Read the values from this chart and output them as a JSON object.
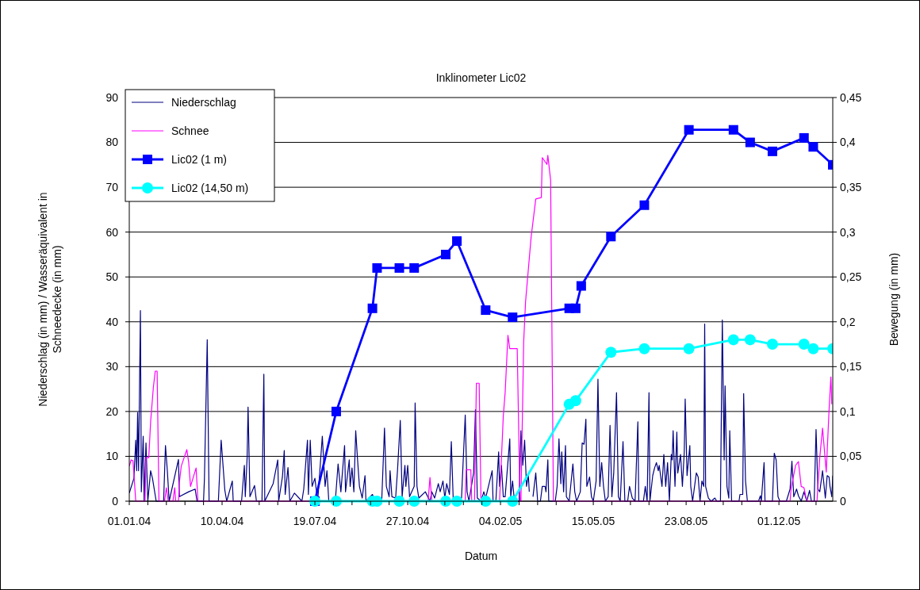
{
  "chart_data": {
    "type": "line",
    "title": "Inklinometer Lic02",
    "xlabel": "Datum",
    "ylabel": "Niederschlag (in mm) / Wasseräquivalent in Schneedecke (in mm)",
    "y2label": "Bewegung (in mm)",
    "xlim": [
      "2004-01-01",
      "2006-01-28"
    ],
    "xticks": [
      {
        "value": "2004-01-01",
        "label": "01.01.04"
      },
      {
        "value": "2004-01-21",
        "label": null
      },
      {
        "value": "2004-02-10",
        "label": null
      },
      {
        "value": "2004-03-01",
        "label": null
      },
      {
        "value": "2004-03-21",
        "label": null
      },
      {
        "value": "2004-04-10",
        "label": "10.04.04"
      },
      {
        "value": "2004-04-30",
        "label": null
      },
      {
        "value": "2004-05-20",
        "label": null
      },
      {
        "value": "2004-06-09",
        "label": null
      },
      {
        "value": "2004-06-29",
        "label": null
      },
      {
        "value": "2004-07-19",
        "label": "19.07.04"
      },
      {
        "value": "2004-08-08",
        "label": null
      },
      {
        "value": "2004-08-28",
        "label": null
      },
      {
        "value": "2004-09-17",
        "label": null
      },
      {
        "value": "2004-10-07",
        "label": null
      },
      {
        "value": "2004-10-27",
        "label": "27.10.04"
      },
      {
        "value": "2004-11-16",
        "label": null
      },
      {
        "value": "2004-12-06",
        "label": null
      },
      {
        "value": "2004-12-26",
        "label": null
      },
      {
        "value": "2005-01-15",
        "label": null
      },
      {
        "value": "2005-02-04",
        "label": "04.02.05"
      },
      {
        "value": "2005-02-24",
        "label": null
      },
      {
        "value": "2005-03-16",
        "label": null
      },
      {
        "value": "2005-04-05",
        "label": null
      },
      {
        "value": "2005-04-25",
        "label": null
      },
      {
        "value": "2005-05-15",
        "label": "15.05.05"
      },
      {
        "value": "2005-06-04",
        "label": null
      },
      {
        "value": "2005-06-24",
        "label": null
      },
      {
        "value": "2005-07-14",
        "label": null
      },
      {
        "value": "2005-08-03",
        "label": null
      },
      {
        "value": "2005-08-23",
        "label": "23.08.05"
      },
      {
        "value": "2005-09-12",
        "label": null
      },
      {
        "value": "2005-10-02",
        "label": null
      },
      {
        "value": "2005-10-22",
        "label": null
      },
      {
        "value": "2005-11-11",
        "label": null
      },
      {
        "value": "2005-12-01",
        "label": "01.12.05"
      },
      {
        "value": "2005-12-21",
        "label": null
      },
      {
        "value": "2006-01-10",
        "label": null
      }
    ],
    "ylim": [
      0,
      90
    ],
    "yticks": [
      0,
      10,
      20,
      30,
      40,
      50,
      60,
      70,
      80,
      90
    ],
    "y2lim": [
      0,
      0.45
    ],
    "y2ticks": [
      0,
      {
        "value": 0.05,
        "label": "0,05"
      },
      {
        "value": 0.1,
        "label": "0,1"
      },
      {
        "value": 0.15,
        "label": "0,15"
      },
      {
        "value": 0.2,
        "label": "0,2"
      },
      {
        "value": 0.25,
        "label": "0,25"
      },
      {
        "value": 0.3,
        "label": "0,3"
      },
      {
        "value": 0.35,
        "label": "0,35"
      },
      {
        "value": 0.4,
        "label": "0,4"
      },
      {
        "value": 0.45,
        "label": "0,45"
      }
    ],
    "grid": "y",
    "legend": "top left",
    "line_style": "solid",
    "series": [
      {
        "name": "Niederschlag",
        "color": "#000080",
        "marker": "none",
        "x": [
          "2004-01-01",
          "2004-01-06",
          "2004-01-08",
          "2004-01-09",
          "2004-01-10",
          "2004-01-11",
          "2004-01-13",
          "2004-01-14",
          "2004-01-16",
          "2004-01-17",
          "2004-01-19",
          "2004-01-21",
          "2004-01-24",
          "2004-01-26",
          "2004-01-30",
          "2004-02-07",
          "2004-02-09",
          "2004-02-11",
          "2004-02-13",
          "2004-02-23",
          "2004-02-24",
          "2004-03-05",
          "2004-03-12",
          "2004-03-14",
          "2004-03-21",
          "2004-03-22",
          "2004-03-25",
          "2004-03-27",
          "2004-04-06",
          "2004-04-09",
          "2004-04-13",
          "2004-04-15",
          "2004-04-21",
          "2004-04-22",
          "2004-05-01",
          "2004-05-04",
          "2004-05-05",
          "2004-05-07",
          "2004-05-08",
          "2004-05-10",
          "2004-05-15",
          "2004-05-17",
          "2004-05-23",
          "2004-05-25",
          "2004-05-26",
          "2004-06-04",
          "2004-06-09",
          "2004-06-10",
          "2004-06-14",
          "2004-06-16",
          "2004-06-17",
          "2004-06-20",
          "2004-06-22",
          "2004-06-27",
          "2004-07-05",
          "2004-07-07",
          "2004-07-11",
          "2004-07-12",
          "2004-07-14",
          "2004-07-16",
          "2004-07-19",
          "2004-07-22",
          "2004-07-27",
          "2004-07-30",
          "2004-08-01",
          "2004-08-03",
          "2004-08-10",
          "2004-08-13",
          "2004-08-16",
          "2004-08-20",
          "2004-08-21",
          "2004-08-25",
          "2004-08-26",
          "2004-08-28",
          "2004-08-30",
          "2004-09-01",
          "2004-09-03",
          "2004-09-05",
          "2004-09-08",
          "2004-09-11",
          "2004-09-12",
          "2004-09-19",
          "2004-09-22",
          "2004-09-29",
          "2004-10-02",
          "2004-10-04",
          "2004-10-07",
          "2004-10-08",
          "2004-10-10",
          "2004-10-14",
          "2004-10-16",
          "2004-10-19",
          "2004-10-21",
          "2004-10-24",
          "2004-10-25",
          "2004-10-27",
          "2004-10-29",
          "2004-11-03",
          "2004-11-04",
          "2004-11-06",
          "2004-11-08",
          "2004-11-15",
          "2004-11-20",
          "2004-11-22",
          "2004-11-25",
          "2004-11-29",
          "2004-12-01",
          "2004-12-04",
          "2004-12-06",
          "2004-12-08",
          "2004-12-11",
          "2004-12-13",
          "2004-12-15",
          "2004-12-20",
          "2004-12-24",
          "2004-12-28",
          "2004-12-30",
          "2005-01-01",
          "2005-01-06",
          "2005-01-08",
          "2005-01-10",
          "2005-01-14",
          "2005-01-17",
          "2005-01-19",
          "2005-01-26",
          "2005-01-27",
          "2005-01-30",
          "2005-02-02",
          "2005-02-03",
          "2005-02-05",
          "2005-02-07",
          "2005-02-09",
          "2005-02-14",
          "2005-02-15",
          "2005-02-17",
          "2005-02-19",
          "2005-02-24",
          "2005-02-26",
          "2005-02-28",
          "2005-03-02",
          "2005-03-04",
          "2005-03-06",
          "2005-03-07",
          "2005-03-09",
          "2005-03-11",
          "2005-03-14",
          "2005-03-16",
          "2005-03-19",
          "2005-03-21",
          "2005-03-24",
          "2005-03-25",
          "2005-03-27",
          "2005-03-28",
          "2005-04-04",
          "2005-04-06",
          "2005-04-08",
          "2005-04-10",
          "2005-04-11",
          "2005-04-13",
          "2005-04-15",
          "2005-04-16",
          "2005-04-19",
          "2005-04-23",
          "2005-04-25",
          "2005-04-27",
          "2005-05-01",
          "2005-05-03",
          "2005-05-05",
          "2005-05-07",
          "2005-05-08",
          "2005-05-11",
          "2005-05-13",
          "2005-05-15",
          "2005-05-18",
          "2005-05-20",
          "2005-05-22",
          "2005-05-24",
          "2005-05-26",
          "2005-05-28",
          "2005-05-31",
          "2005-06-02",
          "2005-06-04",
          "2005-06-06",
          "2005-06-09",
          "2005-06-11",
          "2005-06-13",
          "2005-06-16",
          "2005-06-18",
          "2005-06-21",
          "2005-06-23",
          "2005-06-26",
          "2005-06-29",
          "2005-07-02",
          "2005-07-03",
          "2005-07-08",
          "2005-07-10",
          "2005-07-12",
          "2005-07-14",
          "2005-07-15",
          "2005-07-18",
          "2005-07-20",
          "2005-07-22",
          "2005-07-24",
          "2005-07-25",
          "2005-07-28",
          "2005-07-30",
          "2005-08-01",
          "2005-08-03",
          "2005-08-05",
          "2005-08-07",
          "2005-08-08",
          "2005-08-09",
          "2005-08-11",
          "2005-08-13",
          "2005-08-14",
          "2005-08-17",
          "2005-08-19",
          "2005-08-21",
          "2005-08-22",
          "2005-08-24",
          "2005-08-27",
          "2005-08-28",
          "2005-08-30",
          "2005-09-03",
          "2005-09-05",
          "2005-09-07",
          "2005-09-09",
          "2005-09-11",
          "2005-09-12",
          "2005-09-13",
          "2005-09-16",
          "2005-09-19",
          "2005-09-23",
          "2005-09-25",
          "2005-09-29",
          "2005-10-01",
          "2005-10-03",
          "2005-10-04",
          "2005-10-06",
          "2005-10-08",
          "2005-10-09",
          "2005-10-11",
          "2005-10-19",
          "2005-10-20",
          "2005-10-23",
          "2005-10-24",
          "2005-10-26",
          "2005-10-28",
          "2005-11-09",
          "2005-11-11",
          "2005-11-12",
          "2005-11-15",
          "2005-11-16",
          "2005-11-24",
          "2005-11-26",
          "2005-11-28",
          "2005-11-30",
          "2005-12-02",
          "2005-12-09",
          "2005-12-13",
          "2005-12-15",
          "2005-12-17",
          "2005-12-20",
          "2005-12-22",
          "2005-12-25",
          "2005-12-28",
          "2005-12-31",
          "2006-01-03",
          "2006-01-05",
          "2006-01-08",
          "2006-01-10",
          "2006-01-12",
          "2006-01-14",
          "2006-01-17",
          "2006-01-20",
          "2006-01-22",
          "2006-01-24",
          "2006-01-25",
          "2006-01-27",
          "2006-01-28"
        ],
        "values": [
          1.8,
          5.1,
          13.6,
          6.8,
          19.8,
          6.8,
          42.5,
          2.1,
          14.5,
          0,
          13,
          0,
          6.8,
          5.1,
          0,
          0,
          12.4,
          6.8,
          0,
          9.3,
          1,
          2.1,
          2.7,
          0,
          0,
          5.1,
          36,
          0,
          0,
          13.6,
          2.4,
          0,
          4.5,
          0,
          0,
          8,
          1,
          9.8,
          21,
          1,
          3.5,
          0,
          0,
          28.3,
          0,
          3.9,
          9.2,
          0,
          5.4,
          11.3,
          1.5,
          7.5,
          0,
          1.8,
          0,
          2.7,
          13.6,
          1.5,
          13.6,
          3.3,
          5.1,
          0,
          14.5,
          3.3,
          6.8,
          0,
          0,
          8.3,
          2.1,
          12.4,
          2.1,
          9.2,
          3.3,
          7.4,
          2.1,
          15.7,
          9.2,
          3.3,
          0.7,
          5.7,
          0,
          1.5,
          0,
          0,
          16.3,
          3.3,
          1,
          6.8,
          1,
          0.7,
          6.8,
          18,
          1,
          8,
          3.3,
          8,
          1,
          3.3,
          21.9,
          3.3,
          0.7,
          2.1,
          0,
          2.1,
          0.7,
          3.9,
          2.1,
          4.5,
          0.7,
          3.9,
          1.5,
          13.3,
          0.7,
          0,
          0.7,
          19.2,
          2.1,
          0,
          6.3,
          20.4,
          0.7,
          0,
          2.1,
          0.7,
          6.8,
          0,
          0,
          11,
          3.3,
          8,
          1,
          1,
          13.9,
          1,
          4.5,
          0,
          0,
          15.7,
          8,
          13.6,
          3.3,
          5.7,
          2.1,
          null,
          1,
          6.3,
          0,
          0,
          3.3,
          3.3,
          2.1,
          9.2,
          0,
          0,
          3.3,
          13.9,
          3.9,
          11,
          2.1,
          12.4,
          1,
          0,
          8.3,
          2.1,
          0,
          2.1,
          13,
          12.7,
          18.3,
          3.3,
          5.4,
          1,
          0,
          4.5,
          27.2,
          3.3,
          8.6,
          3.3,
          0,
          1,
          16.9,
          1,
          6.3,
          24.2,
          1,
          0,
          13.3,
          0,
          0,
          3.3,
          0.7,
          0,
          17.7,
          0,
          0,
          3.3,
          0,
          24.2,
          0,
          5.7,
          7.4,
          8.6,
          6.8,
          8,
          3.3,
          10.4,
          3.3,
          8.6,
          0,
          10.4,
          9.2,
          15.7,
          3.3,
          15.4,
          6.3,
          10.4,
          3.3,
          11,
          22.8,
          5.7,
          12.4,
          3.3,
          0,
          6.3,
          5.4,
          0,
          4.5,
          3.3,
          39.5,
          3.3,
          0.7,
          0,
          0.7,
          0,
          0,
          40.4,
          9.2,
          25.7,
          3.3,
          0.7,
          15.7,
          0,
          0,
          1.5,
          1.5,
          24,
          4.5,
          0,
          0,
          1.2,
          0,
          8.6,
          0,
          0,
          10.7,
          9.2,
          1,
          0,
          0,
          2.7,
          8.9,
          1,
          2.7,
          1.2,
          0,
          2.1,
          0,
          2.4,
          0,
          0,
          16,
          2.7,
          2.1,
          6.8,
          0.7,
          5.7,
          5.4,
          3.3,
          1,
          5.7
        ]
      },
      {
        "name": "Schnee",
        "color": "#ff00ff",
        "marker": "none",
        "x": [
          "2004-01-01",
          "2004-01-03",
          "2004-01-05",
          "2004-01-08",
          "2004-01-18",
          "2004-01-19",
          "2004-01-22",
          "2004-01-24",
          "2004-01-27",
          "2004-01-29",
          "2004-01-31",
          "2004-02-02",
          "2004-02-08",
          "2004-02-10",
          "2004-02-12",
          "2004-02-17",
          "2004-02-19",
          "2004-02-20",
          "2004-02-23",
          "2004-02-24",
          "2004-02-26",
          "2004-03-03",
          "2004-03-05",
          "2004-03-07",
          "2004-03-13",
          "2004-03-15",
          "2004-11-18",
          "2004-11-20",
          "2004-11-22",
          "2004-12-28",
          "2004-12-29",
          "2005-01-03",
          "2005-01-04",
          "2005-01-07",
          "2005-01-09",
          "2005-01-12",
          "2005-01-14",
          "2005-02-03",
          "2005-02-07",
          "2005-02-09",
          "2005-02-12",
          "2005-02-14",
          "2005-02-22",
          "2005-02-25",
          "2005-02-26",
          "2005-03-01",
          "2005-03-03",
          "2005-03-09",
          "2005-03-14",
          "2005-03-20",
          "2005-03-21",
          "2005-03-26",
          "2005-03-27",
          "2005-03-30",
          "2005-04-02",
          "2005-12-13",
          "2005-12-14",
          "2005-12-19",
          "2005-12-22",
          "2005-12-25",
          "2005-12-28",
          "2005-12-31",
          "2006-01-11",
          "2006-01-14",
          "2006-01-17",
          "2006-01-21",
          "2006-01-24",
          "2006-01-26",
          "2006-01-27"
        ],
        "values": [
          7.8,
          9.2,
          9,
          0,
          0,
          9.7,
          9.7,
          17.7,
          25.5,
          29,
          29,
          0,
          0,
          3,
          0,
          0,
          3,
          0,
          0,
          4.2,
          7.8,
          11.5,
          8.7,
          3.3,
          7.4,
          0,
          0,
          5.3,
          0,
          0,
          7,
          7,
          0,
          0,
          26.3,
          26.3,
          0,
          0,
          19,
          24.2,
          37,
          34,
          34,
          0,
          0,
          35.7,
          44.5,
          58.9,
          67.4,
          67.7,
          76.6,
          75.1,
          77.1,
          71.6,
          0,
          0,
          2.7,
          8,
          8.8,
          3.3,
          3,
          0,
          0,
          9.7,
          16.3,
          6.5,
          20.3,
          27.7,
          21.6
        ]
      },
      {
        "name": "Lic02 (1 m)",
        "color": "#0000ff",
        "marker": "square",
        "axis": "y2",
        "x": [
          "2004-07-19",
          "2004-08-11",
          "2004-09-19",
          "2004-09-24",
          "2004-10-18",
          "2004-11-03",
          "2004-12-07",
          "2004-12-19",
          "2005-01-19",
          "2005-02-17",
          "2005-04-19",
          "2005-04-26",
          "2005-05-02",
          "2005-06-03",
          "2005-07-09",
          "2005-08-26",
          "2005-10-13",
          "2005-10-31",
          "2005-11-24",
          "2005-12-28",
          "2006-01-07",
          "2006-01-28"
        ],
        "values": [
          0,
          0.1,
          0.215,
          0.26,
          0.26,
          0.26,
          0.275,
          0.29,
          0.213,
          0.205,
          0.215,
          0.215,
          0.24,
          0.295,
          0.33,
          0.414,
          0.414,
          0.4,
          0.39,
          0.405,
          0.395,
          0.375
        ]
      },
      {
        "name": "Lic02 (14,50 m)",
        "color": "#00ffff",
        "marker": "circle",
        "axis": "y2",
        "x": [
          "2004-07-19",
          "2004-08-11",
          "2004-09-19",
          "2004-09-24",
          "2004-10-18",
          "2004-11-03",
          "2004-12-07",
          "2004-12-19",
          "2005-01-19",
          "2005-02-17",
          "2005-04-19",
          "2005-04-26",
          "2005-06-03",
          "2005-07-09",
          "2005-08-26",
          "2005-10-13",
          "2005-10-31",
          "2005-11-24",
          "2005-12-28",
          "2006-01-07",
          "2006-01-28"
        ],
        "values": [
          0,
          0,
          0,
          0,
          0,
          0,
          0,
          0,
          0,
          0,
          0.108,
          0.112,
          0.166,
          0.17,
          0.17,
          0.18,
          0.18,
          0.175,
          0.175,
          0.17,
          0.17
        ]
      }
    ]
  }
}
